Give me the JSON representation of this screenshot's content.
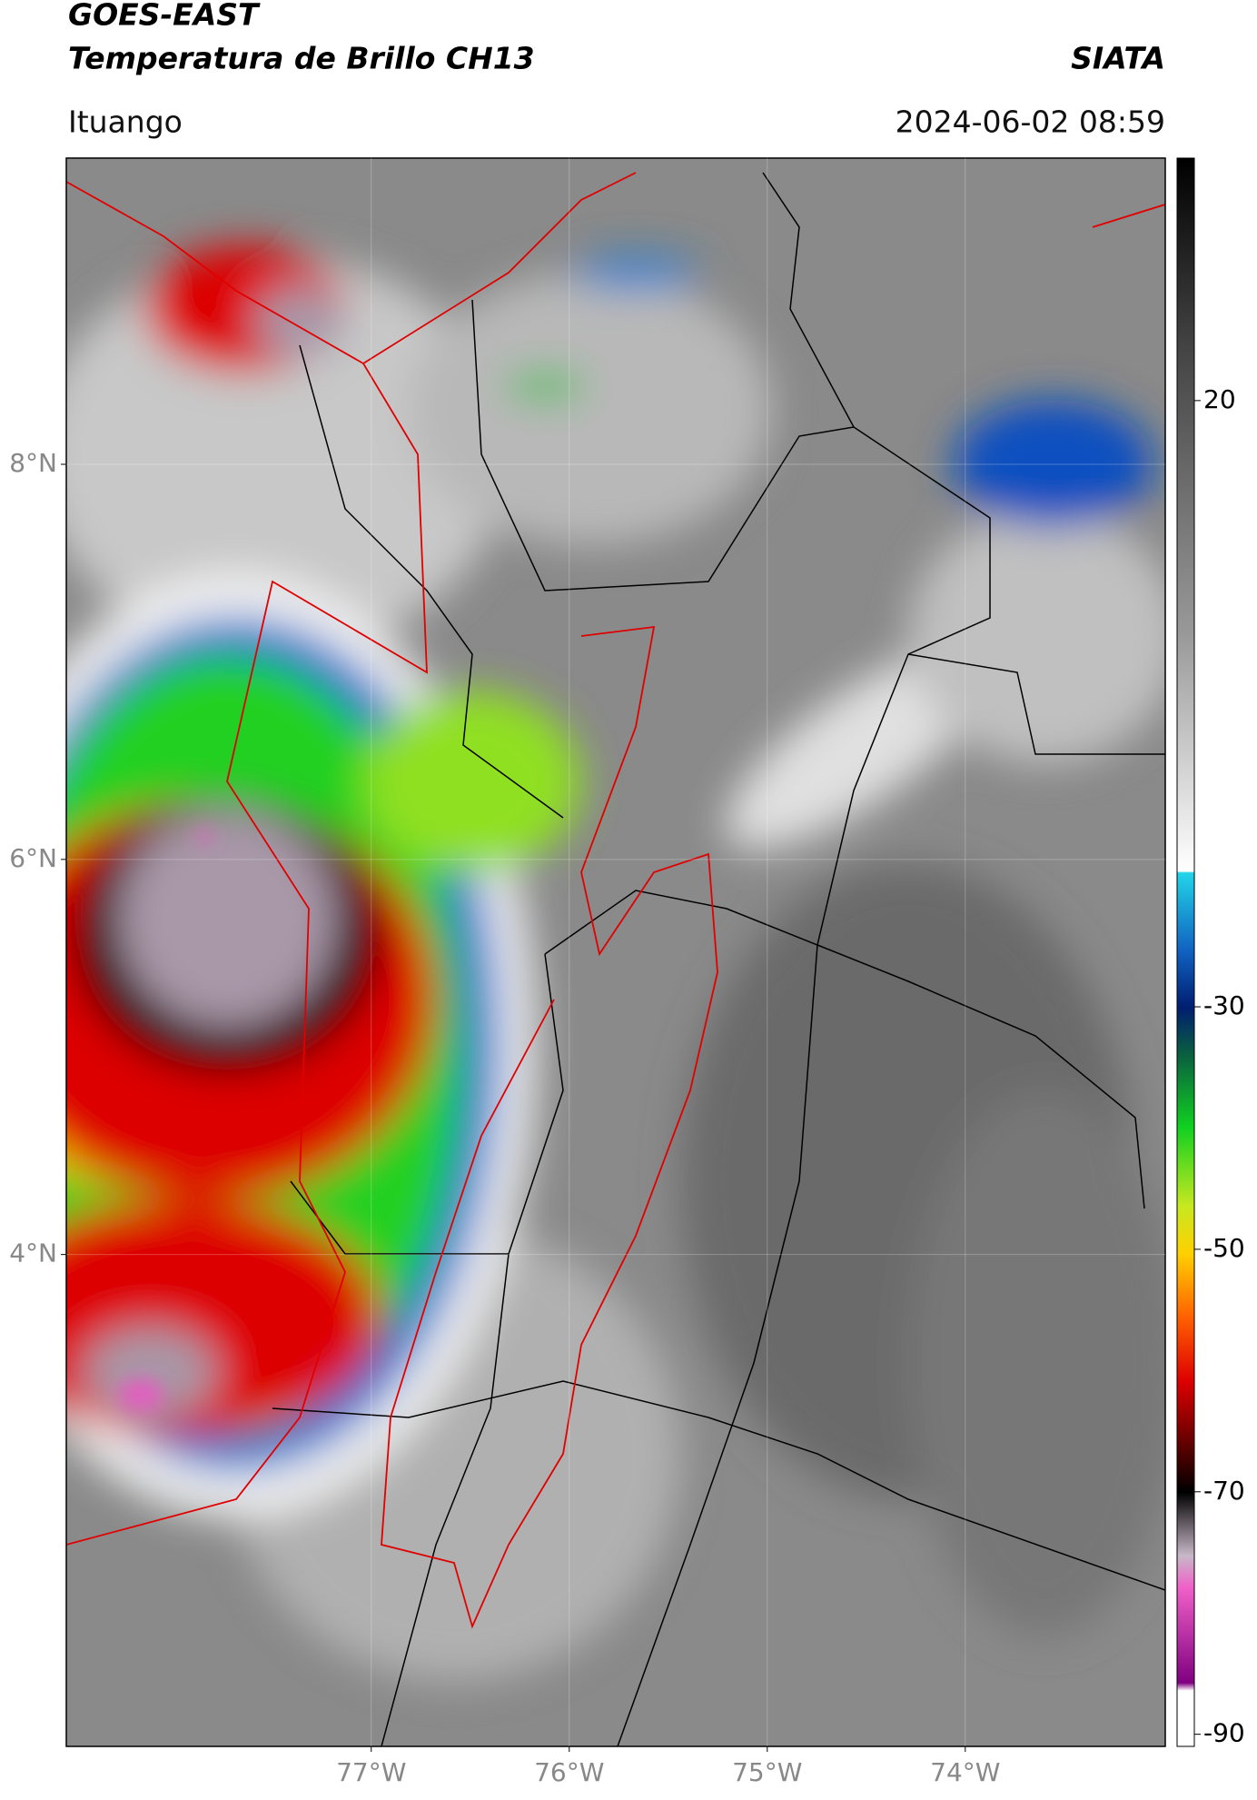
{
  "header": {
    "title": "GOES-EAST",
    "subtitle": "Temperatura de Brillo CH13",
    "brand": "SIATA",
    "location": "Ituango",
    "datetime": "2024-06-02 08:59"
  },
  "map": {
    "lon_range": [
      -78.54,
      -72.99
    ],
    "lat_range": [
      1.51,
      9.55
    ],
    "lat_ticks": [
      {
        "value": 8,
        "label": "8°N"
      },
      {
        "value": 6,
        "label": "6°N"
      },
      {
        "value": 4,
        "label": "4°N"
      }
    ],
    "lon_ticks": [
      {
        "value": -77,
        "label": "77°W"
      },
      {
        "value": -76,
        "label": "76°W"
      },
      {
        "value": -75,
        "label": "75°W"
      },
      {
        "value": -74,
        "label": "74°W"
      }
    ]
  },
  "colorbar": {
    "range": [
      -91,
      40
    ],
    "ticks": [
      20,
      -30,
      -50,
      -70,
      -90
    ]
  }
}
